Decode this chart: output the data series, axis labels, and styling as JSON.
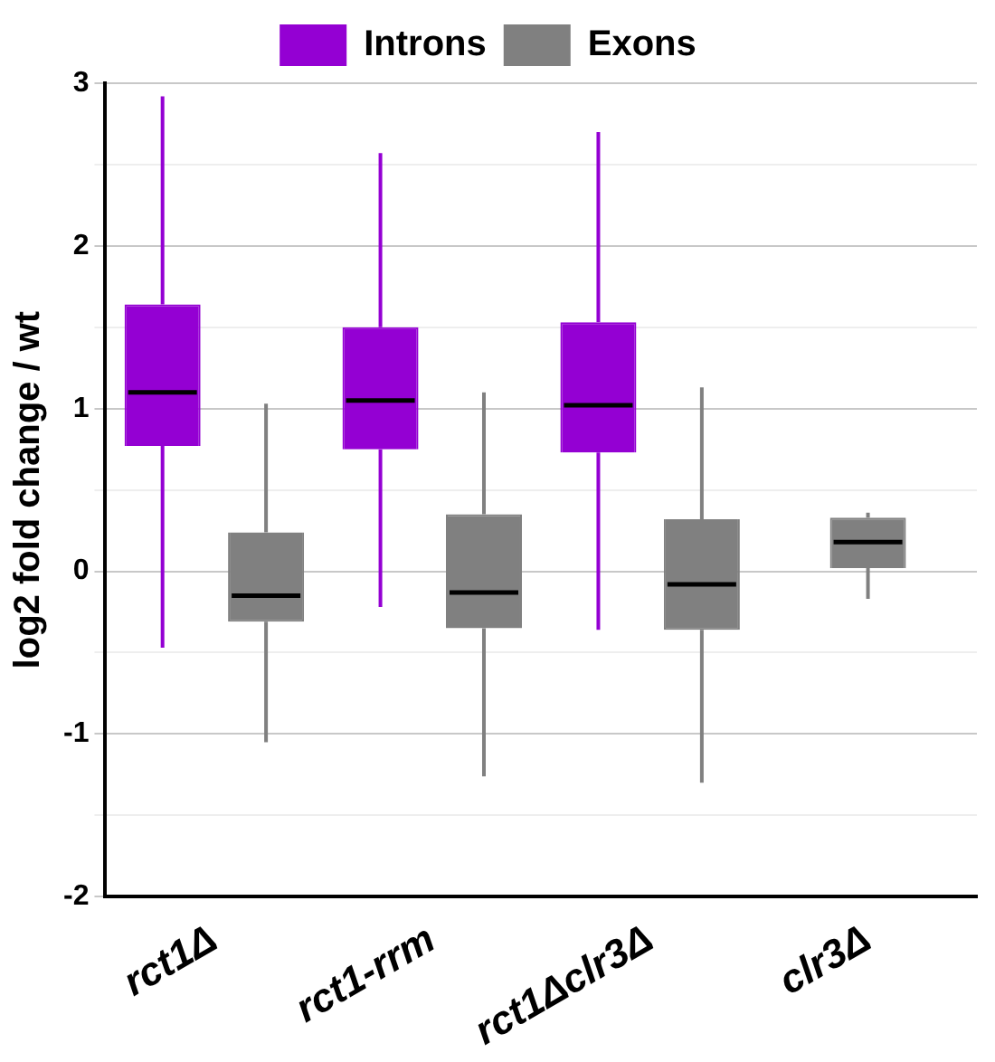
{
  "chart_data": {
    "type": "box",
    "ylabel": "log2 fold change / wt",
    "categories": [
      "rct1Δ",
      "rct1-rrm",
      "rct1Δclr3Δ",
      "clr3Δ"
    ],
    "ylim": [
      -2,
      3
    ],
    "yticks": [
      -2,
      {
        "value": -1.5,
        "label": null
      },
      -1,
      {
        "value": -0.5,
        "label": null
      },
      0,
      {
        "value": 0.5,
        "label": null
      },
      1,
      {
        "value": 1.5,
        "label": null
      },
      2,
      {
        "value": 2.5,
        "label": null
      },
      3
    ],
    "grid": "y",
    "legend": "top",
    "series": [
      {
        "name": "Introns",
        "color": "#9400d3",
        "boxes": [
          {
            "low": -0.47,
            "q1": 0.77,
            "median": 1.1,
            "q3": 1.64,
            "high": 2.92
          },
          {
            "low": -0.22,
            "q1": 0.75,
            "median": 1.05,
            "q3": 1.5,
            "high": 2.57
          },
          {
            "low": -0.36,
            "q1": 0.73,
            "median": 1.02,
            "q3": 1.53,
            "high": 2.7
          },
          null
        ]
      },
      {
        "name": "Exons",
        "color": "#808080",
        "boxes": [
          {
            "low": -1.05,
            "q1": -0.31,
            "median": -0.15,
            "q3": 0.24,
            "high": 1.03
          },
          {
            "low": -1.26,
            "q1": -0.35,
            "median": -0.13,
            "q3": 0.35,
            "high": 1.1
          },
          {
            "low": -1.3,
            "q1": -0.36,
            "median": -0.08,
            "q3": 0.32,
            "high": 1.13
          },
          {
            "low": -0.17,
            "q1": 0.02,
            "median": 0.18,
            "q3": 0.33,
            "high": 0.36
          }
        ]
      }
    ]
  }
}
